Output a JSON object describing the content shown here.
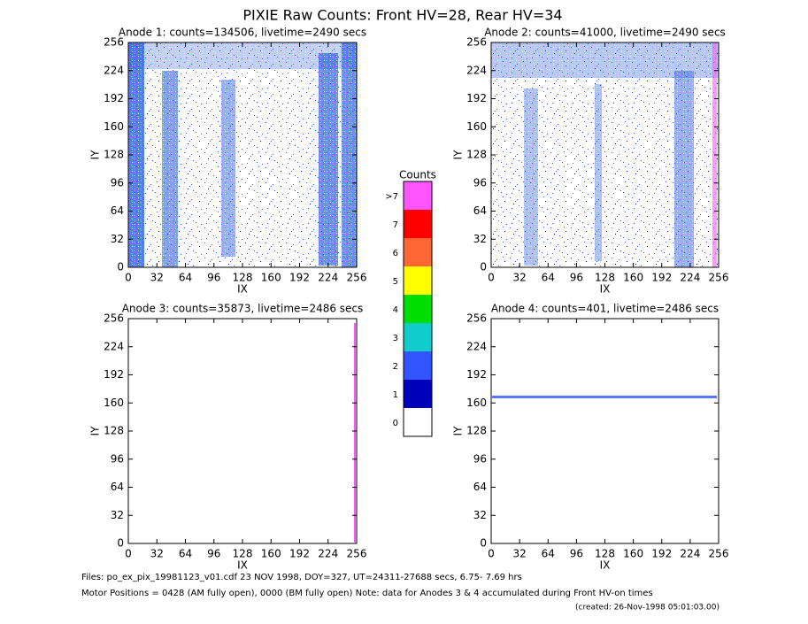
{
  "title": "PIXIE Raw Counts:  Front HV=28, Rear HV=34",
  "chart_data": [
    {
      "type": "heatmap",
      "title": "Anode 1: counts=134506, livetime=2490 secs",
      "xlabel": "IX",
      "ylabel": "IY",
      "xlim": [
        0,
        256
      ],
      "ylim": [
        0,
        256
      ],
      "xticks": [
        0,
        32,
        64,
        96,
        128,
        160,
        192,
        224,
        256
      ],
      "yticks": [
        0,
        32,
        64,
        96,
        128,
        160,
        192,
        224,
        256
      ]
    },
    {
      "type": "heatmap",
      "title": "Anode 2: counts=41000, livetime=2490 secs",
      "xlabel": "IX",
      "ylabel": "IY",
      "xlim": [
        0,
        256
      ],
      "ylim": [
        0,
        256
      ],
      "xticks": [
        0,
        32,
        64,
        96,
        128,
        160,
        192,
        224,
        256
      ],
      "yticks": [
        0,
        32,
        64,
        96,
        128,
        160,
        192,
        224,
        256
      ]
    },
    {
      "type": "heatmap",
      "title": "Anode 3: counts=35873, livetime=2486 secs",
      "xlabel": "IX",
      "ylabel": "IY",
      "xlim": [
        0,
        256
      ],
      "ylim": [
        0,
        256
      ],
      "xticks": [
        0,
        32,
        64,
        96,
        128,
        160,
        192,
        224,
        256
      ],
      "yticks": [
        0,
        32,
        64,
        96,
        128,
        160,
        192,
        224,
        256
      ]
    },
    {
      "type": "heatmap",
      "title": "Anode 4: counts=401, livetime=2486 secs",
      "xlabel": "IX",
      "ylabel": "IY",
      "xlim": [
        0,
        256
      ],
      "ylim": [
        0,
        256
      ],
      "xticks": [
        0,
        32,
        64,
        96,
        128,
        160,
        192,
        224,
        256
      ],
      "yticks": [
        0,
        32,
        64,
        96,
        128,
        160,
        192,
        224,
        256
      ]
    }
  ],
  "colorbar": {
    "title": "Counts",
    "labels": [
      ">7",
      "7",
      "6",
      "5",
      "4",
      "3",
      "2",
      "1",
      "0"
    ],
    "colors": [
      "#ff55ff",
      "#ff0000",
      "#ff6633",
      "#ffff00",
      "#00dd00",
      "#11cccc",
      "#3355ff",
      "#0000bb",
      "#ffffff"
    ]
  },
  "footer": [
    "Files: po_ex_pix_19981123_v01.cdf    23 NOV 1998, DOY=327, UT=24311-27688 secs,  6.75- 7.69 hrs",
    "Motor Positions = 0428 (AM fully open), 0000 (BM fully open)    Note: data for Anodes 3 & 4 accumulated during Front HV-on times"
  ],
  "created": "(created: 26-Nov-1998 05:01:03.00)"
}
